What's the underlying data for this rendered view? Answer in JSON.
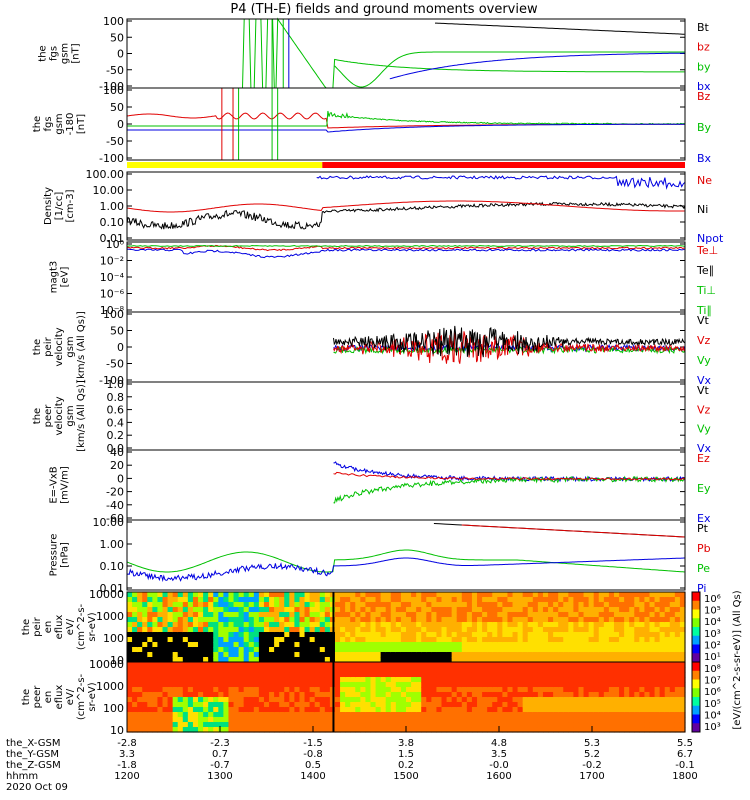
{
  "chart_data": {
    "type": "line",
    "title": "P4 (TH-E) fields and ground moments overview",
    "time_labels": [
      "1200",
      "1300",
      "1400",
      "1500",
      "1600",
      "1700",
      "1800"
    ],
    "x_rows": [
      {
        "label": "the_X-GSM",
        "values": [
          "-2.8",
          "-2.3",
          "-1.5",
          "3.8",
          "4.8",
          "5.3",
          "5.5"
        ]
      },
      {
        "label": "the_Y-GSM",
        "values": [
          "3.3",
          "0.7",
          "-0.8",
          "1.5",
          "3.5",
          "5.2",
          "6.7"
        ]
      },
      {
        "label": "the_Z-GSM",
        "values": [
          "-1.8",
          "-0.7",
          "0.5",
          "0.2",
          "-0.0",
          "-0.2",
          "-0.1"
        ]
      },
      {
        "label": "hhmm",
        "values": [
          "1200",
          "1300",
          "1400",
          "1500",
          "1600",
          "1700",
          "1800"
        ]
      }
    ],
    "date": "2020 Oct 09",
    "panels": [
      {
        "id": "fgs_gsm",
        "ylabel": [
          "the",
          "fgs",
          "gsm",
          "[nT]"
        ],
        "yticks": [
          "100",
          "50",
          "0",
          "-50",
          "-100"
        ],
        "legend": [
          {
            "name": "Bt",
            "color": "#000000"
          },
          {
            "name": "bz",
            "color": "#e00000"
          },
          {
            "name": "by",
            "color": "#00c000"
          },
          {
            "name": "bx",
            "color": "#0000e0"
          }
        ]
      },
      {
        "id": "fgs_gsm_clip",
        "ylabel": [
          "the",
          "fgs",
          "gsm",
          "-180",
          "[nT]"
        ],
        "yticks": [
          "100",
          "50",
          "0",
          "-50",
          "-100"
        ],
        "legend": [
          {
            "name": "Bz",
            "color": "#e00000"
          },
          {
            "name": "By",
            "color": "#00c000"
          },
          {
            "name": "Bx",
            "color": "#0000e0"
          }
        ]
      },
      {
        "id": "density",
        "ylabel": [
          "Density",
          "[1/cc]",
          "[cm-3]"
        ],
        "yticks": [
          "100.00",
          "10.00",
          "1.00",
          "0.10",
          "0.01"
        ],
        "legend": [
          {
            "name": "Ne",
            "color": "#e00000"
          },
          {
            "name": "Ni",
            "color": "#000000"
          },
          {
            "name": "Npot",
            "color": "#0000e0"
          }
        ]
      },
      {
        "id": "temperature",
        "ylabel": [
          "magt3",
          "[eV]"
        ],
        "yticks": [
          "10⁰",
          "10⁻²",
          "10⁻⁴",
          "10⁻⁶",
          "10⁻⁸"
        ],
        "legend": [
          {
            "name": "Te⊥",
            "color": "#e00000"
          },
          {
            "name": "Te∥",
            "color": "#000000"
          },
          {
            "name": "Ti⊥",
            "color": "#00c000"
          },
          {
            "name": "Ti∥",
            "color": "#00c000"
          }
        ]
      },
      {
        "id": "peir_vel",
        "ylabel": [
          "the",
          "peir",
          "velocity",
          "gsm",
          "[km/s (All Qs)]"
        ],
        "yticks": [
          "100",
          "50",
          "0",
          "-50",
          "-100"
        ],
        "legend": [
          {
            "name": "Vt",
            "color": "#000000"
          },
          {
            "name": "Vz",
            "color": "#e00000"
          },
          {
            "name": "Vy",
            "color": "#00c000"
          },
          {
            "name": "Vx",
            "color": "#0000e0"
          }
        ]
      },
      {
        "id": "peer_vel",
        "ylabel": [
          "the",
          "peer",
          "velocity",
          "gsm",
          "[km/s (All Qs)]"
        ],
        "yticks": [
          "1.0",
          "0.8",
          "0.6",
          "0.4",
          "0.2",
          "0.0"
        ],
        "legend": [
          {
            "name": "Vt",
            "color": "#000000"
          },
          {
            "name": "Vz",
            "color": "#e00000"
          },
          {
            "name": "Vy",
            "color": "#00c000"
          },
          {
            "name": "Vx",
            "color": "#0000e0"
          }
        ]
      },
      {
        "id": "efield",
        "ylabel": [
          "E=-VxB",
          "[mV/m]"
        ],
        "yticks": [
          "40",
          "20",
          "0",
          "-20",
          "-40",
          "-60"
        ],
        "legend": [
          {
            "name": "Ez",
            "color": "#e00000"
          },
          {
            "name": "Ey",
            "color": "#00c000"
          },
          {
            "name": "Ex",
            "color": "#0000e0"
          }
        ]
      },
      {
        "id": "pressure",
        "ylabel": [
          "Pressure",
          "[nPa]"
        ],
        "yticks": [
          "10.00",
          "1.00",
          "0.10",
          "0.01"
        ],
        "legend": [
          {
            "name": "Pt",
            "color": "#000000"
          },
          {
            "name": "Pb",
            "color": "#e00000"
          },
          {
            "name": "Pe",
            "color": "#00c000"
          },
          {
            "name": "Pi",
            "color": "#0000e0"
          }
        ]
      },
      {
        "id": "peir_spec",
        "ylabel": [
          "the",
          "peir",
          "en",
          "eflux",
          "eV/",
          "(cm^2-s-",
          "sr-eV)"
        ],
        "yticks": [
          "10000",
          "1000",
          "100",
          "10"
        ]
      },
      {
        "id": "peer_spec",
        "ylabel": [
          "the",
          "peer",
          "en",
          "eflux",
          "eV/",
          "(cm^2-s-",
          "sr-eV)"
        ],
        "yticks": [
          "10000",
          "1000",
          "100",
          "10"
        ]
      }
    ],
    "colorbar1": {
      "ticks": [
        "10⁶",
        "10⁵",
        "10⁴",
        "10³",
        "10²",
        "10¹"
      ]
    },
    "colorbar2": {
      "ticks": [
        "10⁸",
        "10⁷",
        "10⁶",
        "10⁵",
        "10⁴",
        "10³"
      ]
    },
    "colorbar_label": "[eV/(cm^2-s-sr-eV)]  (All Qs)",
    "mode_bar": [
      {
        "from": 0,
        "to": 0.35,
        "color": "#ffff00"
      },
      {
        "from": 0.35,
        "to": 1,
        "color": "#ff0000"
      }
    ]
  }
}
